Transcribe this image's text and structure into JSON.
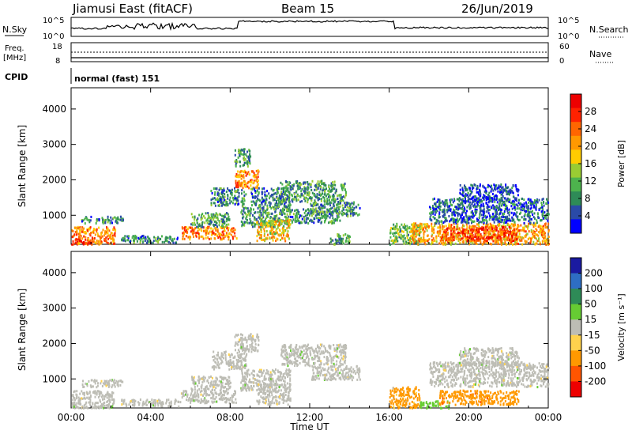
{
  "header": {
    "station": "Jiamusi East (fitACF)",
    "beam": "Beam 15",
    "date": "26/Jun/2019"
  },
  "panels": {
    "nsky": {
      "label": "N.Sky",
      "ticks": [
        "10^5",
        "10^0"
      ],
      "right_label": "N.Search",
      "right_ticks": [
        "10^5",
        "10^0"
      ]
    },
    "freq": {
      "label_line1": "Freq.",
      "label_line2": "[MHz]",
      "ticks": [
        "18",
        "8"
      ],
      "right_label": "Nave",
      "right_ticks": [
        "60",
        "0"
      ]
    },
    "cpid": {
      "label": "CPID",
      "value": "normal (fast) 151"
    }
  },
  "colors": {
    "power": [
      "#0000ff",
      "#2a4aa8",
      "#2e8b57",
      "#4db34d",
      "#99cc33",
      "#ffcc00",
      "#ff9900",
      "#ff6600",
      "#ff2200",
      "#ee0000"
    ],
    "velocity": [
      "#1a1aa0",
      "#2e6ec4",
      "#2e8b57",
      "#66cc33",
      "#bdbdb5",
      "#ffd24d",
      "#ff9900",
      "#ff5500",
      "#ee0000"
    ]
  },
  "chart_data": [
    {
      "type": "heatmap",
      "name": "power",
      "xlabel": "",
      "ylabel": "Slant Range [km]",
      "x_ticks": [
        "00:00",
        "04:00",
        "08:00",
        "12:00",
        "16:00",
        "20:00",
        "00:00"
      ],
      "y_ticks": [
        1000,
        2000,
        3000,
        4000
      ],
      "ylim": [
        180,
        4600
      ],
      "xlim": [
        "00:00",
        "24:00"
      ],
      "colorbar": {
        "label": "Power [dB]",
        "ticks": [
          4,
          8,
          12,
          16,
          20,
          24,
          28
        ],
        "range": [
          0,
          32
        ]
      },
      "blobs": [
        {
          "t0": 0.0,
          "t1": 2.2,
          "r0": 200,
          "r1": 700,
          "value": 22
        },
        {
          "t0": 0.0,
          "t1": 1.0,
          "r0": 200,
          "r1": 350,
          "value": 28
        },
        {
          "t0": 0.5,
          "t1": 2.6,
          "r0": 800,
          "r1": 1000,
          "value": 8
        },
        {
          "t0": 2.5,
          "t1": 5.5,
          "r0": 250,
          "r1": 450,
          "value": 8
        },
        {
          "t0": 5.5,
          "t1": 8.3,
          "r0": 350,
          "r1": 700,
          "value": 22
        },
        {
          "t0": 6.0,
          "t1": 8.0,
          "r0": 700,
          "r1": 1100,
          "value": 10
        },
        {
          "t0": 7.0,
          "t1": 8.8,
          "r0": 1300,
          "r1": 1800,
          "value": 8
        },
        {
          "t0": 8.2,
          "t1": 9.4,
          "r0": 1800,
          "r1": 2300,
          "value": 22
        },
        {
          "t0": 8.2,
          "t1": 9.0,
          "r0": 2400,
          "r1": 2900,
          "value": 10
        },
        {
          "t0": 8.5,
          "t1": 11.0,
          "r0": 700,
          "r1": 1300,
          "value": 10
        },
        {
          "t0": 9.0,
          "t1": 11.0,
          "r0": 1300,
          "r1": 1800,
          "value": 8
        },
        {
          "t0": 10.5,
          "t1": 13.8,
          "r0": 1400,
          "r1": 2000,
          "value": 10
        },
        {
          "t0": 9.3,
          "t1": 11.0,
          "r0": 300,
          "r1": 900,
          "value": 18
        },
        {
          "t0": 11.0,
          "t1": 13.5,
          "r0": 800,
          "r1": 1200,
          "value": 8
        },
        {
          "t0": 12.0,
          "t1": 14.5,
          "r0": 1000,
          "r1": 1400,
          "value": 9
        },
        {
          "t0": 13.0,
          "t1": 14.0,
          "r0": 200,
          "r1": 500,
          "value": 10
        },
        {
          "t0": 16.0,
          "t1": 17.5,
          "r0": 200,
          "r1": 800,
          "value": 12
        },
        {
          "t0": 17.0,
          "t1": 24.0,
          "r0": 200,
          "r1": 800,
          "value": 20
        },
        {
          "t0": 18.5,
          "t1": 22.5,
          "r0": 300,
          "r1": 700,
          "value": 26
        },
        {
          "t0": 18.0,
          "t1": 24.0,
          "r0": 800,
          "r1": 1500,
          "value": 6
        },
        {
          "t0": 19.5,
          "t1": 22.5,
          "r0": 1400,
          "r1": 1900,
          "value": 4
        }
      ]
    },
    {
      "type": "heatmap",
      "name": "velocity",
      "xlabel": "Time UT",
      "ylabel": "Slant Range [km]",
      "x_ticks": [
        "00:00",
        "04:00",
        "08:00",
        "12:00",
        "16:00",
        "20:00",
        "00:00"
      ],
      "y_ticks": [
        1000,
        2000,
        3000,
        4000
      ],
      "ylim": [
        180,
        4600
      ],
      "xlim": [
        "00:00",
        "24:00"
      ],
      "colorbar": {
        "label": "Velocity [m s^-1]",
        "ticks": [
          "200",
          "100",
          "50",
          "15",
          "-15",
          "-50",
          "-100",
          "-200"
        ]
      },
      "blobs": [
        {
          "t0": 0.0,
          "t1": 2.2,
          "r0": 200,
          "r1": 700,
          "value": 0
        },
        {
          "t0": 0.5,
          "t1": 2.6,
          "r0": 800,
          "r1": 1000,
          "value": 0
        },
        {
          "t0": 2.5,
          "t1": 5.5,
          "r0": 250,
          "r1": 450,
          "value": 0
        },
        {
          "t0": 5.5,
          "t1": 8.3,
          "r0": 350,
          "r1": 700,
          "value": 0
        },
        {
          "t0": 6.0,
          "t1": 8.0,
          "r0": 700,
          "r1": 1100,
          "value": 0
        },
        {
          "t0": 7.0,
          "t1": 8.8,
          "r0": 1300,
          "r1": 1800,
          "value": 0
        },
        {
          "t0": 8.2,
          "t1": 9.4,
          "r0": 1800,
          "r1": 2300,
          "value": 0
        },
        {
          "t0": 8.5,
          "t1": 11.0,
          "r0": 700,
          "r1": 1300,
          "value": 0
        },
        {
          "t0": 10.5,
          "t1": 13.8,
          "r0": 1400,
          "r1": 2000,
          "value": 0
        },
        {
          "t0": 9.3,
          "t1": 11.0,
          "r0": 300,
          "r1": 900,
          "value": 0
        },
        {
          "t0": 12.0,
          "t1": 14.5,
          "r0": 1000,
          "r1": 1400,
          "value": 0
        },
        {
          "t0": 16.0,
          "t1": 17.5,
          "r0": 200,
          "r1": 800,
          "value": -30
        },
        {
          "t0": 17.5,
          "t1": 19.0,
          "r0": 200,
          "r1": 400,
          "value": 30
        },
        {
          "t0": 18.5,
          "t1": 22.5,
          "r0": 300,
          "r1": 700,
          "value": -60
        },
        {
          "t0": 18.0,
          "t1": 24.0,
          "r0": 800,
          "r1": 1500,
          "value": 0
        },
        {
          "t0": 19.5,
          "t1": 22.5,
          "r0": 1400,
          "r1": 1900,
          "value": 0
        }
      ]
    }
  ]
}
